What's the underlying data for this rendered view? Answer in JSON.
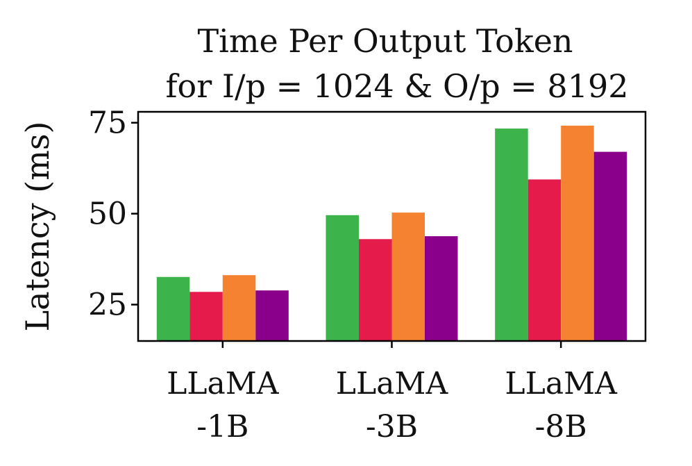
{
  "chart_data": {
    "type": "bar",
    "title": "Time Per Output Token",
    "subtitle": "for I/p = 1024 & O/p = 8192",
    "xlabel": "",
    "ylabel": "Latency (ms)",
    "ylim": [
      15,
      78
    ],
    "yticks": [
      "25",
      "50",
      "75"
    ],
    "ytick_values": [
      25,
      50,
      75
    ],
    "grid": false,
    "legend": "none",
    "categories": [
      [
        "LLaMA",
        "-1B"
      ],
      [
        "LLaMA",
        "-3B"
      ],
      [
        "LLaMA",
        "-8B"
      ]
    ],
    "series": [
      {
        "color": "#3cb44b",
        "values": [
          32.6,
          49.6,
          73.4
        ]
      },
      {
        "color": "#e41b4b",
        "values": [
          28.5,
          43.0,
          59.4
        ]
      },
      {
        "color": "#f58231",
        "values": [
          33.1,
          50.3,
          74.2
        ]
      },
      {
        "color": "#8b008b",
        "values": [
          28.9,
          43.8,
          67.0
        ]
      }
    ]
  }
}
